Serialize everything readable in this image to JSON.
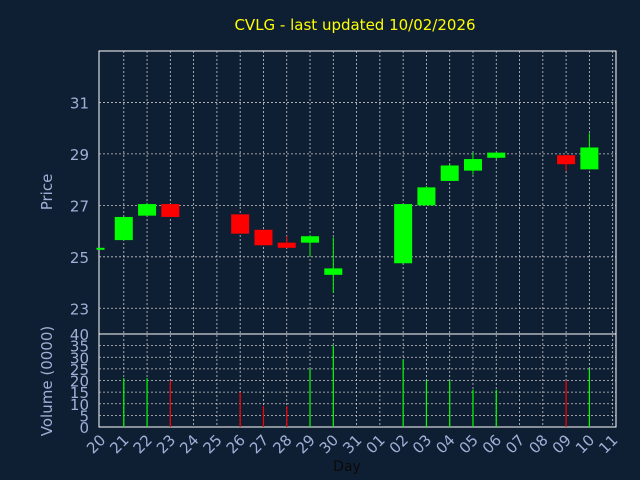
{
  "chart_data": {
    "type": "candlestick",
    "title": "CVLG - last updated 10/02/2026",
    "xlabel": "Day",
    "price_panel": {
      "ylabel": "Price",
      "ylim": [
        22.0,
        33.0
      ],
      "yticks": [
        23,
        25,
        27,
        29,
        31
      ]
    },
    "volume_panel": {
      "ylabel": "Volume (0000)",
      "ylim": [
        0,
        40
      ],
      "yticks": [
        0,
        5,
        10,
        15,
        20,
        25,
        30,
        35,
        40
      ]
    },
    "x_tick_labels": [
      "20",
      "21",
      "22",
      "23",
      "24",
      "25",
      "26",
      "27",
      "28",
      "29",
      "30",
      "31",
      "01",
      "02",
      "03",
      "04",
      "05",
      "06",
      "07",
      "08",
      "09",
      "10",
      "11"
    ],
    "candles": [
      {
        "day": "20",
        "open": 25.35,
        "high": 25.35,
        "low": 25.35,
        "close": 25.35,
        "volume": 0
      },
      {
        "day": "21",
        "open": 25.65,
        "high": 26.55,
        "low": 25.65,
        "close": 26.55,
        "volume": 21
      },
      {
        "day": "22",
        "open": 26.6,
        "high": 27.1,
        "low": 26.6,
        "close": 27.05,
        "volume": 21
      },
      {
        "day": "23",
        "open": 27.05,
        "high": 27.05,
        "low": 26.55,
        "close": 26.55,
        "volume": 20
      },
      {
        "day": "26",
        "open": 26.65,
        "high": 26.65,
        "low": 25.9,
        "close": 25.9,
        "volume": 15
      },
      {
        "day": "27",
        "open": 26.05,
        "high": 26.05,
        "low": 25.45,
        "close": 25.45,
        "volume": 9
      },
      {
        "day": "28",
        "open": 25.55,
        "high": 25.8,
        "low": 25.35,
        "close": 25.35,
        "volume": 9
      },
      {
        "day": "29",
        "open": 25.55,
        "high": 25.85,
        "low": 25.0,
        "close": 25.8,
        "volume": 25
      },
      {
        "day": "30",
        "open": 24.3,
        "high": 25.75,
        "low": 23.6,
        "close": 24.55,
        "volume": 35
      },
      {
        "day": "02",
        "open": 24.75,
        "high": 27.05,
        "low": 24.75,
        "close": 27.05,
        "volume": 29
      },
      {
        "day": "03",
        "open": 27.0,
        "high": 27.75,
        "low": 27.0,
        "close": 27.7,
        "volume": 20
      },
      {
        "day": "04",
        "open": 27.95,
        "high": 28.6,
        "low": 27.95,
        "close": 28.55,
        "volume": 20
      },
      {
        "day": "05",
        "open": 28.35,
        "high": 29.05,
        "low": 28.2,
        "close": 28.8,
        "volume": 16
      },
      {
        "day": "06",
        "open": 28.85,
        "high": 29.05,
        "low": 28.8,
        "close": 29.05,
        "volume": 16
      },
      {
        "day": "09",
        "open": 28.95,
        "high": 28.95,
        "low": 28.35,
        "close": 28.6,
        "volume": 20
      },
      {
        "day": "10",
        "open": 28.4,
        "high": 29.8,
        "low": 28.4,
        "close": 29.25,
        "volume": 25
      }
    ],
    "colors": {
      "background": "#0f1f33",
      "plot_border": "#ffffff",
      "grid": "#c8c8c8",
      "up": "#00ff00",
      "down": "#ff0000",
      "title": "#ffff00",
      "tick": "#9fb0d8",
      "xlabel": "#0a0a0a"
    },
    "grid": true
  }
}
